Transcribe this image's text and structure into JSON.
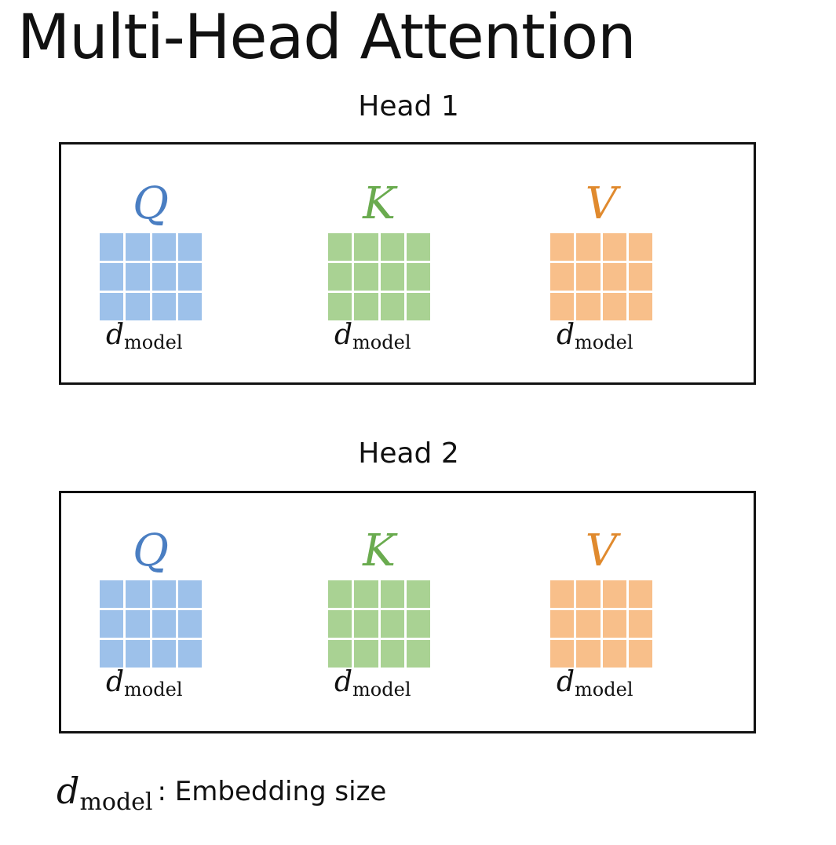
{
  "title": "Multi-Head Attention",
  "colors": {
    "q": "#4a7ec2",
    "q_cell": "#9dc1ea",
    "k": "#6aab4f",
    "k_cell": "#a9d293",
    "v": "#e08a2e",
    "v_cell": "#f8bf8a"
  },
  "heads": [
    {
      "label": "Head 1",
      "matrices": [
        {
          "letter": "Q",
          "dim_base": "d",
          "dim_sub": "model"
        },
        {
          "letter": "K",
          "dim_base": "d",
          "dim_sub": "model"
        },
        {
          "letter": "V",
          "dim_base": "d",
          "dim_sub": "model"
        }
      ]
    },
    {
      "label": "Head 2",
      "matrices": [
        {
          "letter": "Q",
          "dim_base": "d",
          "dim_sub": "model"
        },
        {
          "letter": "K",
          "dim_base": "d",
          "dim_sub": "model"
        },
        {
          "letter": "V",
          "dim_base": "d",
          "dim_sub": "model"
        }
      ]
    }
  ],
  "legend": {
    "symbol_base": "d",
    "symbol_sub": "model",
    "description": ": Embedding size"
  }
}
